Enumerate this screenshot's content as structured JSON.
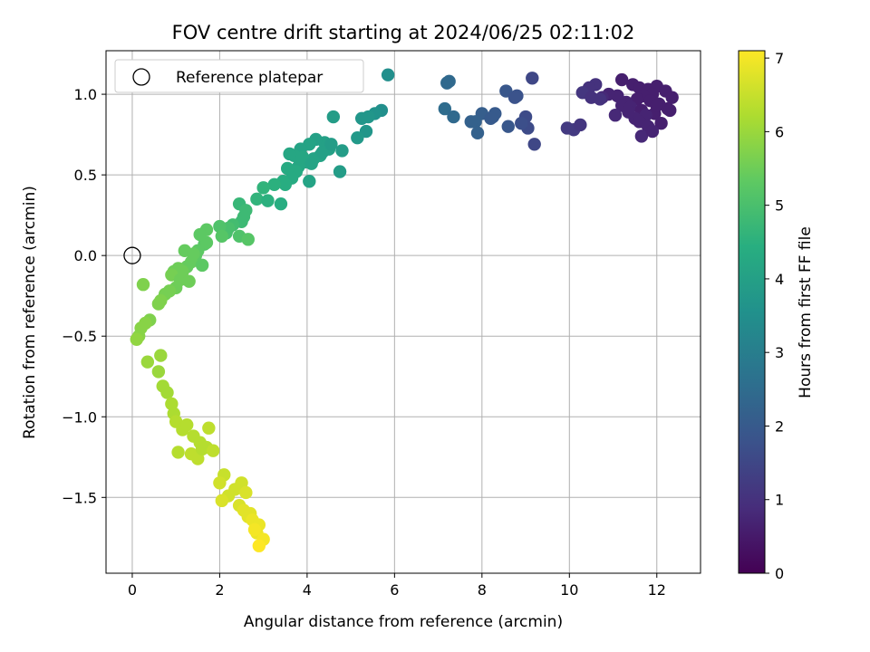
{
  "chart_data": {
    "type": "scatter",
    "title": "FOV centre drift starting at 2024/06/25 02:11:02",
    "xlabel": "Angular distance from reference (arcmin)",
    "ylabel": "Rotation from reference (arcmin)",
    "xlim": [
      -0.6,
      13.0
    ],
    "ylim": [
      -1.97,
      1.27
    ],
    "xticks": [
      0,
      2,
      4,
      6,
      8,
      10,
      12
    ],
    "yticks": [
      -1.5,
      -1.0,
      -0.5,
      0.0,
      0.5,
      1.0
    ],
    "xtick_labels": [
      "0",
      "2",
      "4",
      "6",
      "8",
      "10",
      "12"
    ],
    "ytick_labels": [
      "−1.5",
      "−1.0",
      "−0.5",
      "0.0",
      "0.5",
      "1.0"
    ],
    "grid": true,
    "legend": {
      "position": "top-left",
      "entries": [
        "Reference platepar"
      ]
    },
    "reference_point": {
      "x": 0,
      "y": 0
    },
    "colorbar": {
      "label": "Hours from first FF file",
      "range": [
        0,
        7.1
      ],
      "ticks": [
        0,
        1,
        2,
        3,
        4,
        5,
        6,
        7
      ],
      "tick_labels": [
        "0",
        "1",
        "2",
        "3",
        "4",
        "5",
        "6",
        "7"
      ],
      "colormap": "viridis"
    },
    "series": [
      {
        "values_note": "",
        "x": [
          11.2,
          11.45,
          11.6,
          11.8,
          12.0,
          12.2,
          12.35,
          11.9,
          11.7,
          11.55,
          11.3,
          11.1,
          10.9,
          10.75,
          11.2,
          11.4,
          11.65,
          11.85,
          12.05,
          12.25,
          11.95,
          11.75,
          11.5,
          11.35,
          11.05,
          10.6,
          10.45,
          10.3,
          10.5,
          10.7,
          11.6,
          11.8,
          12.1,
          12.3,
          10.1,
          9.95,
          10.25,
          11.65,
          11.9,
          12.0,
          9.15,
          9.0,
          8.8,
          8.55,
          8.25,
          8.0,
          7.85,
          9.05,
          8.75,
          8.3,
          7.2,
          7.15,
          7.35,
          7.25,
          7.9,
          7.75,
          8.2,
          8.9,
          9.2,
          8.6,
          5.85,
          5.7,
          5.55,
          5.4,
          5.25,
          5.35,
          5.15,
          4.6,
          4.4,
          4.2,
          4.05,
          3.85,
          3.7,
          3.6,
          4.8,
          4.5,
          4.3,
          4.15,
          3.95,
          3.8,
          3.75,
          3.65,
          3.55,
          3.45,
          3.9,
          4.1,
          4.35,
          4.55,
          4.75,
          3.5,
          4.05,
          3.25,
          3.0,
          2.85,
          3.1,
          3.4,
          2.45,
          2.6,
          2.5,
          2.3,
          2.15,
          2.55,
          2.2,
          2.45,
          2.65,
          2.0,
          2.05,
          1.7,
          1.65,
          1.5,
          1.45,
          1.35,
          1.25,
          1.15,
          1.05,
          0.95,
          1.2,
          1.4,
          1.6,
          0.9,
          1.1,
          1.3,
          1.7,
          1.55,
          1.0,
          0.85,
          0.75,
          0.65,
          0.6,
          0.4,
          0.3,
          0.2,
          0.15,
          0.1,
          0.25,
          0.65,
          0.35,
          0.6,
          0.8,
          0.9,
          0.95,
          0.7,
          1.0,
          1.15,
          1.25,
          1.4,
          1.55,
          1.7,
          1.35,
          1.05,
          1.5,
          1.6,
          1.85,
          1.75,
          2.1,
          2.0,
          2.2,
          2.35,
          2.05,
          2.5,
          2.6,
          2.45,
          2.7,
          2.55,
          2.65,
          2.75,
          2.9,
          2.85,
          3.0,
          2.8,
          2.9
        ],
        "y": [
          1.09,
          1.06,
          1.04,
          1.03,
          1.05,
          1.02,
          0.98,
          1.0,
          0.99,
          0.97,
          0.95,
          0.99,
          1.0,
          0.98,
          0.93,
          0.92,
          0.9,
          0.96,
          0.94,
          0.91,
          0.88,
          0.87,
          0.85,
          0.89,
          0.87,
          1.06,
          1.04,
          1.01,
          0.98,
          0.97,
          0.83,
          0.8,
          0.82,
          0.9,
          0.78,
          0.79,
          0.81,
          0.74,
          0.77,
          0.93,
          1.1,
          0.86,
          0.99,
          1.02,
          0.86,
          0.88,
          0.83,
          0.79,
          0.98,
          0.88,
          1.07,
          0.91,
          0.86,
          1.08,
          0.76,
          0.83,
          0.85,
          0.82,
          0.69,
          0.8,
          1.12,
          0.9,
          0.88,
          0.86,
          0.85,
          0.77,
          0.73,
          0.86,
          0.7,
          0.72,
          0.69,
          0.66,
          0.62,
          0.63,
          0.65,
          0.66,
          0.62,
          0.6,
          0.58,
          0.55,
          0.52,
          0.48,
          0.54,
          0.46,
          0.61,
          0.57,
          0.64,
          0.69,
          0.52,
          0.44,
          0.46,
          0.44,
          0.42,
          0.35,
          0.34,
          0.32,
          0.32,
          0.28,
          0.21,
          0.19,
          0.14,
          0.24,
          0.17,
          0.12,
          0.1,
          0.18,
          0.12,
          0.16,
          0.07,
          0.03,
          0.0,
          -0.04,
          -0.07,
          -0.1,
          -0.08,
          -0.1,
          0.03,
          0.01,
          -0.06,
          -0.12,
          -0.15,
          -0.16,
          0.08,
          0.13,
          -0.2,
          -0.22,
          -0.24,
          -0.28,
          -0.3,
          -0.4,
          -0.42,
          -0.45,
          -0.5,
          -0.52,
          -0.18,
          -0.62,
          -0.66,
          -0.72,
          -0.85,
          -0.92,
          -0.98,
          -0.81,
          -1.03,
          -1.08,
          -1.05,
          -1.12,
          -1.16,
          -1.19,
          -1.23,
          -1.22,
          -1.26,
          -1.2,
          -1.21,
          -1.07,
          -1.36,
          -1.41,
          -1.49,
          -1.45,
          -1.52,
          -1.41,
          -1.47,
          -1.55,
          -1.6,
          -1.58,
          -1.62,
          -1.64,
          -1.67,
          -1.72,
          -1.76,
          -1.7,
          -1.8
        ],
        "hours": [
          0.6,
          0.6,
          0.6,
          0.6,
          0.6,
          0.6,
          0.6,
          0.6,
          0.6,
          0.6,
          0.7,
          0.7,
          0.7,
          0.8,
          0.7,
          0.7,
          0.6,
          0.6,
          0.6,
          0.6,
          0.6,
          0.7,
          0.7,
          0.7,
          0.8,
          1.0,
          1.0,
          1.1,
          1.0,
          1.0,
          0.7,
          0.7,
          0.6,
          0.6,
          1.2,
          1.2,
          1.1,
          0.8,
          0.7,
          0.6,
          1.5,
          1.6,
          1.8,
          1.9,
          2.0,
          2.1,
          2.2,
          1.6,
          1.8,
          2.0,
          2.4,
          2.5,
          2.4,
          2.4,
          2.2,
          2.2,
          2.0,
          1.7,
          1.5,
          1.9,
          3.5,
          3.5,
          3.6,
          3.7,
          3.7,
          3.7,
          3.8,
          3.9,
          4.0,
          4.0,
          4.1,
          4.1,
          4.2,
          4.2,
          3.9,
          4.0,
          4.1,
          4.1,
          4.2,
          4.2,
          4.3,
          4.3,
          4.3,
          4.4,
          4.2,
          4.1,
          4.0,
          3.9,
          3.9,
          4.4,
          4.1,
          4.5,
          4.6,
          4.6,
          4.5,
          4.4,
          4.7,
          4.8,
          4.8,
          4.9,
          5.0,
          4.8,
          5.0,
          5.1,
          5.2,
          5.1,
          5.2,
          5.3,
          5.2,
          5.3,
          5.3,
          5.4,
          5.4,
          5.5,
          5.5,
          5.5,
          5.4,
          5.4,
          5.3,
          5.6,
          5.5,
          5.5,
          5.3,
          5.3,
          5.5,
          5.6,
          5.6,
          5.7,
          5.7,
          5.7,
          5.8,
          5.8,
          5.8,
          5.9,
          5.7,
          6.0,
          6.0,
          6.0,
          6.1,
          6.2,
          6.2,
          6.1,
          6.3,
          6.3,
          6.3,
          6.3,
          6.3,
          6.3,
          6.4,
          6.3,
          6.4,
          6.3,
          6.4,
          6.4,
          6.5,
          6.6,
          6.6,
          6.6,
          6.7,
          6.6,
          6.7,
          6.7,
          6.8,
          6.8,
          6.8,
          6.9,
          6.9,
          6.9,
          7.0,
          7.0,
          7.1
        ]
      }
    ]
  }
}
